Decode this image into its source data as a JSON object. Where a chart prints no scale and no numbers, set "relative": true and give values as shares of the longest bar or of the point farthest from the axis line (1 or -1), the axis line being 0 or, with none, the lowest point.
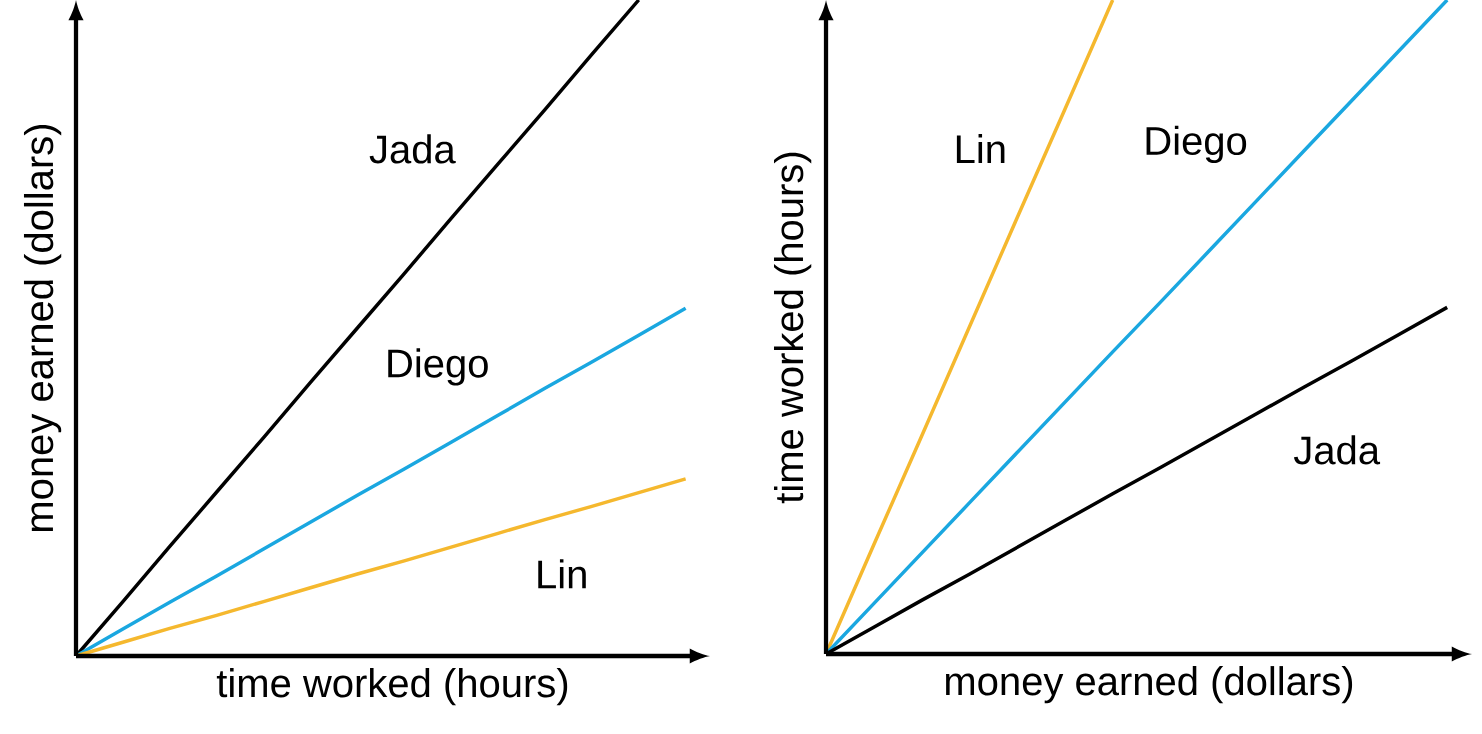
{
  "chart_data": [
    {
      "type": "line",
      "relative": true,
      "xlabel": "time worked (hours)",
      "ylabel": "money earned (dollars)",
      "categories": [
        null,
        null,
        null,
        null,
        null,
        null,
        null,
        null,
        null,
        null,
        null,
        null,
        null,
        null
      ],
      "series": [
        {
          "name": "Jada",
          "color": "#000000",
          "values": [
            0,
            0.083,
            0.167,
            0.25,
            0.333,
            0.417,
            0.5,
            0.583,
            0.667,
            0.75,
            0.833,
            0.917,
            1,
            null
          ]
        },
        {
          "name": "Diego",
          "color": "#1aa7e0",
          "values": [
            0,
            0.041,
            0.082,
            0.122,
            0.163,
            0.204,
            0.245,
            0.285,
            0.326,
            0.367,
            0.408,
            0.448,
            0.489,
            0.53
          ]
        },
        {
          "name": "Lin",
          "color": "#f5b82e",
          "values": [
            0,
            0.021,
            0.042,
            0.062,
            0.083,
            0.104,
            0.125,
            0.145,
            0.166,
            0.187,
            0.208,
            0.228,
            0.249,
            0.27
          ]
        }
      ]
    },
    {
      "type": "line",
      "relative": true,
      "xlabel": "money earned (dollars)",
      "ylabel": "time worked (hours)",
      "categories": [
        null,
        null,
        null,
        null,
        null,
        null,
        null,
        null,
        null,
        null,
        null,
        null,
        null,
        null
      ],
      "series": [
        {
          "name": "Lin",
          "color": "#f5b82e",
          "values": [
            0,
            0.167,
            0.333,
            0.5,
            0.667,
            0.833,
            1,
            null,
            null,
            null,
            null,
            null,
            null,
            null
          ]
        },
        {
          "name": "Diego",
          "color": "#1aa7e0",
          "values": [
            0,
            0.077,
            0.154,
            0.231,
            0.308,
            0.385,
            0.462,
            0.538,
            0.615,
            0.692,
            0.769,
            0.846,
            0.923,
            1
          ]
        },
        {
          "name": "Jada",
          "color": "#000000",
          "values": [
            0,
            0.041,
            0.082,
            0.122,
            0.163,
            0.204,
            0.245,
            0.285,
            0.326,
            0.367,
            0.408,
            0.448,
            0.489,
            0.53
          ]
        }
      ]
    }
  ]
}
